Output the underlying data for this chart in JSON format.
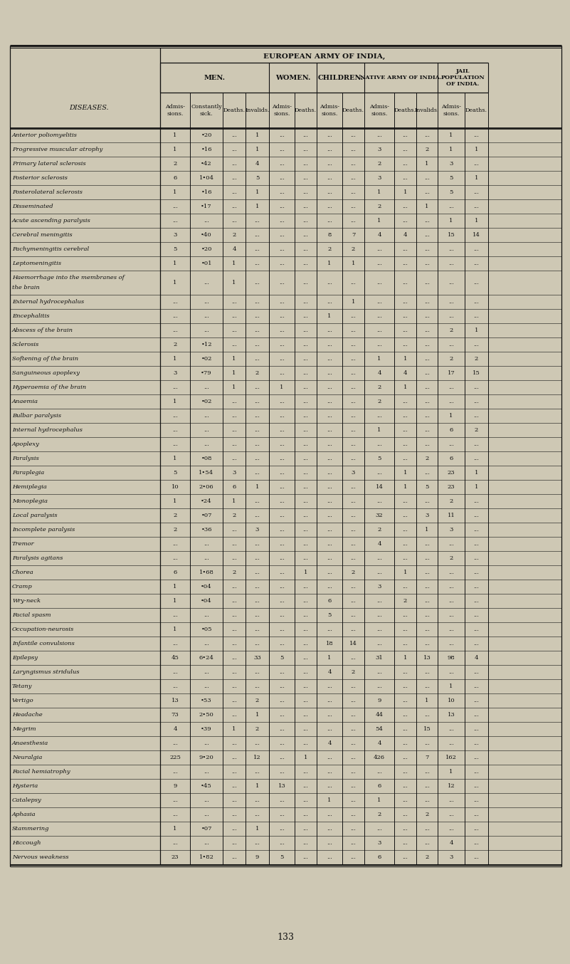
{
  "bg_color": "#cec8b4",
  "title_top": "EUROPEAN ARMY OF INDIA,",
  "diseases": [
    "Anterior poliomyelitis",
    "Progressive muscular atrophy",
    "Primary lateral sclerosis",
    "Posterior sclerosis",
    "Posterolateral sclerosis",
    "Disseminated",
    "Acute ascending paralysis",
    "Cerebral meningitis",
    "Pachymeningitis cerebral",
    "Leptomeningitis",
    "Haemorrhage into the membranes of\n  the brain",
    "External hydrocephalus",
    "Encephalitis",
    "Abscess of the brain",
    "Sclerosis",
    "Softening of the brain",
    "Sanguineous apoplexy",
    "Hyperaemia of the brain",
    "Anaemia",
    "Bulbar paralysis",
    "Internal hydrocephalus",
    "Apoplexy",
    "Paralysis",
    "Paraplegia",
    "Hemiplegia",
    "Monoplegia",
    "Local paralysis",
    "Incomplete paralysis",
    "Tremor",
    "Paralysis agitans",
    "Chorea",
    "Cramp",
    "Wry-neck",
    "Facial spasm",
    "Occupation-neurosis",
    "Infantile convulsions",
    "Epilepsy",
    "Laryngismus stridulus",
    "Tetany",
    "Vertigo",
    "Headache",
    "Megrim",
    "Anaesthesia",
    "Neuralgia",
    "Facial hemiatrophy",
    "Hysteria",
    "Catalepsy",
    "Aphasia",
    "Stammering",
    "Hiccough",
    "Nervous weakness"
  ],
  "col_headers": [
    "Admis-\nsions.",
    "Constantly\nsick.",
    "Deaths.",
    "Invalids.",
    "Admis-\nsions.",
    "Deaths.",
    "Admis-\nsions.",
    "Deaths.",
    "Admis-\nsions.",
    "Deaths.",
    "Invalids.",
    "Admis-\nsions.",
    "Deaths."
  ],
  "data": [
    [
      "1",
      "•20",
      "...",
      "1",
      "...",
      "...",
      "...",
      "...",
      "...",
      "...",
      "...",
      "1",
      "..."
    ],
    [
      "1",
      "•16",
      "...",
      "1",
      "...",
      "...",
      "...",
      "...",
      "3",
      "...",
      "2",
      "1",
      "1"
    ],
    [
      "2",
      "•42",
      "...",
      "4",
      "...",
      "...",
      "...",
      "...",
      "2",
      "...",
      "1",
      "3",
      "..."
    ],
    [
      "6",
      "1•04",
      "...",
      "5",
      "...",
      "...",
      "...",
      "...",
      "3",
      "...",
      "...",
      "5",
      "1"
    ],
    [
      "1",
      "•16",
      "...",
      "1",
      "...",
      "...",
      "...",
      "...",
      "1",
      "1",
      "...",
      "5",
      "..."
    ],
    [
      "...",
      "•17",
      "...",
      "1",
      "...",
      "...",
      "...",
      "...",
      "2",
      "...",
      "1",
      "...",
      "..."
    ],
    [
      "...",
      "...",
      "...",
      "...",
      "...",
      "...",
      "...",
      "...",
      "1",
      "...",
      "...",
      "1",
      "1"
    ],
    [
      "3",
      "•40",
      "2",
      "...",
      "...",
      "...",
      "8",
      "7",
      "4",
      "4",
      "...",
      "15",
      "14"
    ],
    [
      "5",
      "•20",
      "4",
      "...",
      "...",
      "...",
      "2",
      "2",
      "...",
      "...",
      "...",
      "...",
      "..."
    ],
    [
      "1",
      "•01",
      "1",
      "...",
      "...",
      "...",
      "1",
      "1",
      "...",
      "...",
      "...",
      "...",
      "..."
    ],
    [
      "1",
      "...",
      "1",
      "...",
      "...",
      "...",
      "...",
      "...",
      "...",
      "...",
      "...",
      "...",
      "..."
    ],
    [
      "...",
      "...",
      "...",
      "...",
      "...",
      "...",
      "...",
      "1",
      "...",
      "...",
      "...",
      "...",
      "..."
    ],
    [
      "...",
      "...",
      "...",
      "...",
      "...",
      "...",
      "1",
      "...",
      "...",
      "...",
      "...",
      "...",
      "..."
    ],
    [
      "...",
      "...",
      "...",
      "...",
      "...",
      "...",
      "...",
      "...",
      "...",
      "...",
      "...",
      "2",
      "1"
    ],
    [
      "2",
      "•12",
      "...",
      "...",
      "...",
      "...",
      "...",
      "...",
      "...",
      "...",
      "...",
      "...",
      "..."
    ],
    [
      "1",
      "•02",
      "1",
      "...",
      "...",
      "...",
      "...",
      "...",
      "1",
      "1",
      "...",
      "2",
      "2"
    ],
    [
      "3",
      "•79",
      "1",
      "2",
      "...",
      "...",
      "...",
      "...",
      "4",
      "4",
      "...",
      "17",
      "15"
    ],
    [
      "...",
      "...",
      "1",
      "...",
      "1",
      "...",
      "...",
      "...",
      "2",
      "1",
      "...",
      "...",
      "..."
    ],
    [
      "1",
      "•02",
      "...",
      "...",
      "...",
      "...",
      "...",
      "...",
      "2",
      "...",
      "...",
      "...",
      "..."
    ],
    [
      "...",
      "...",
      "...",
      "...",
      "...",
      "...",
      "...",
      "...",
      "...",
      "...",
      "...",
      "1",
      "..."
    ],
    [
      "...",
      "...",
      "...",
      "...",
      "...",
      "...",
      "...",
      "...",
      "1",
      "...",
      "...",
      "6",
      "2"
    ],
    [
      "...",
      "...",
      "...",
      "...",
      "...",
      "...",
      "...",
      "...",
      "...",
      "...",
      "...",
      "...",
      "..."
    ],
    [
      "1",
      "•08",
      "...",
      "...",
      "...",
      "...",
      "...",
      "...",
      "5",
      "...",
      "2",
      "6",
      "..."
    ],
    [
      "5",
      "1•54",
      "3",
      "...",
      "...",
      "...",
      "...",
      "3",
      "...",
      "1",
      "...",
      "23",
      "1"
    ],
    [
      "10",
      "2•06",
      "6",
      "1",
      "...",
      "...",
      "...",
      "...",
      "14",
      "1",
      "5",
      "23",
      "1"
    ],
    [
      "1",
      "•24",
      "1",
      "...",
      "...",
      "...",
      "...",
      "...",
      "...",
      "...",
      "...",
      "2",
      "..."
    ],
    [
      "2",
      "•07",
      "2",
      "...",
      "...",
      "...",
      "...",
      "...",
      "32",
      "...",
      "3",
      "11",
      "..."
    ],
    [
      "2",
      "•36",
      "...",
      "3",
      "...",
      "...",
      "...",
      "...",
      "2",
      "...",
      "1",
      "3",
      "..."
    ],
    [
      "...",
      "...",
      "...",
      "...",
      "...",
      "...",
      "...",
      "...",
      "4",
      "...",
      "...",
      "...",
      "..."
    ],
    [
      "...",
      "...",
      "...",
      "...",
      "...",
      "...",
      "...",
      "...",
      "...",
      "...",
      "...",
      "2",
      "..."
    ],
    [
      "6",
      "1•68",
      "2",
      "...",
      "...",
      "1",
      "...",
      "2",
      "...",
      "1",
      "...",
      "...",
      "..."
    ],
    [
      "1",
      "•04",
      "...",
      "...",
      "...",
      "...",
      "...",
      "...",
      "3",
      "...",
      "...",
      "...",
      "..."
    ],
    [
      "1",
      "•04",
      "...",
      "...",
      "...",
      "...",
      "6",
      "...",
      "...",
      "2",
      "...",
      "...",
      "..."
    ],
    [
      "...",
      "...",
      "...",
      "...",
      "...",
      "...",
      "5",
      "...",
      "...",
      "...",
      "...",
      "...",
      "..."
    ],
    [
      "1",
      "•05",
      "...",
      "...",
      "...",
      "...",
      "...",
      "...",
      "...",
      "...",
      "...",
      "...",
      "..."
    ],
    [
      "...",
      "...",
      "...",
      "...",
      "...",
      "...",
      "18",
      "14",
      "...",
      "...",
      "...",
      "...",
      "..."
    ],
    [
      "45",
      "6•24",
      "...",
      "33",
      "5",
      "...",
      "1",
      "...",
      "31",
      "1",
      "13",
      "98",
      "4"
    ],
    [
      "...",
      "...",
      "...",
      "...",
      "...",
      "...",
      "4",
      "2",
      "...",
      "...",
      "...",
      "...",
      "..."
    ],
    [
      "...",
      "...",
      "...",
      "...",
      "...",
      "...",
      "...",
      "...",
      "...",
      "...",
      "...",
      "1",
      "..."
    ],
    [
      "13",
      "•53",
      "...",
      "2",
      "...",
      "...",
      "...",
      "...",
      "9",
      "...",
      "1",
      "10",
      "..."
    ],
    [
      "73",
      "2•50",
      "...",
      "1",
      "...",
      "...",
      "...",
      "...",
      "44",
      "...",
      "...",
      "13",
      "..."
    ],
    [
      "4",
      "•39",
      "1",
      "2",
      "...",
      "...",
      "...",
      "...",
      "54",
      "...",
      "15",
      "...",
      "..."
    ],
    [
      "...",
      "...",
      "...",
      "...",
      "...",
      "...",
      "4",
      "...",
      "4",
      "...",
      "...",
      "...",
      "..."
    ],
    [
      "225",
      "9•20",
      "...",
      "12",
      "...",
      "1",
      "...",
      "...",
      "426",
      "...",
      "7",
      "162",
      "..."
    ],
    [
      "...",
      "...",
      "...",
      "...",
      "...",
      "...",
      "...",
      "...",
      "...",
      "...",
      "...",
      "1",
      "..."
    ],
    [
      "9",
      "•45",
      "...",
      "1",
      "13",
      "...",
      "...",
      "...",
      "6",
      "...",
      "...",
      "12",
      "..."
    ],
    [
      "...",
      "...",
      "...",
      "...",
      "...",
      "...",
      "1",
      "...",
      "1",
      "...",
      "...",
      "...",
      "..."
    ],
    [
      "...",
      "...",
      "...",
      "...",
      "...",
      "...",
      "...",
      "...",
      "2",
      "...",
      "2",
      "...",
      "..."
    ],
    [
      "1",
      "•07",
      "...",
      "1",
      "...",
      "...",
      "...",
      "...",
      "...",
      "...",
      "...",
      "...",
      "..."
    ],
    [
      "...",
      "...",
      "...",
      "...",
      "...",
      "...",
      "...",
      "...",
      "3",
      "...",
      "...",
      "4",
      "..."
    ],
    [
      "23",
      "1•82",
      "...",
      "9",
      "5",
      "...",
      "...",
      "...",
      "6",
      "...",
      "2",
      "3",
      "..."
    ]
  ],
  "footnote": "133"
}
